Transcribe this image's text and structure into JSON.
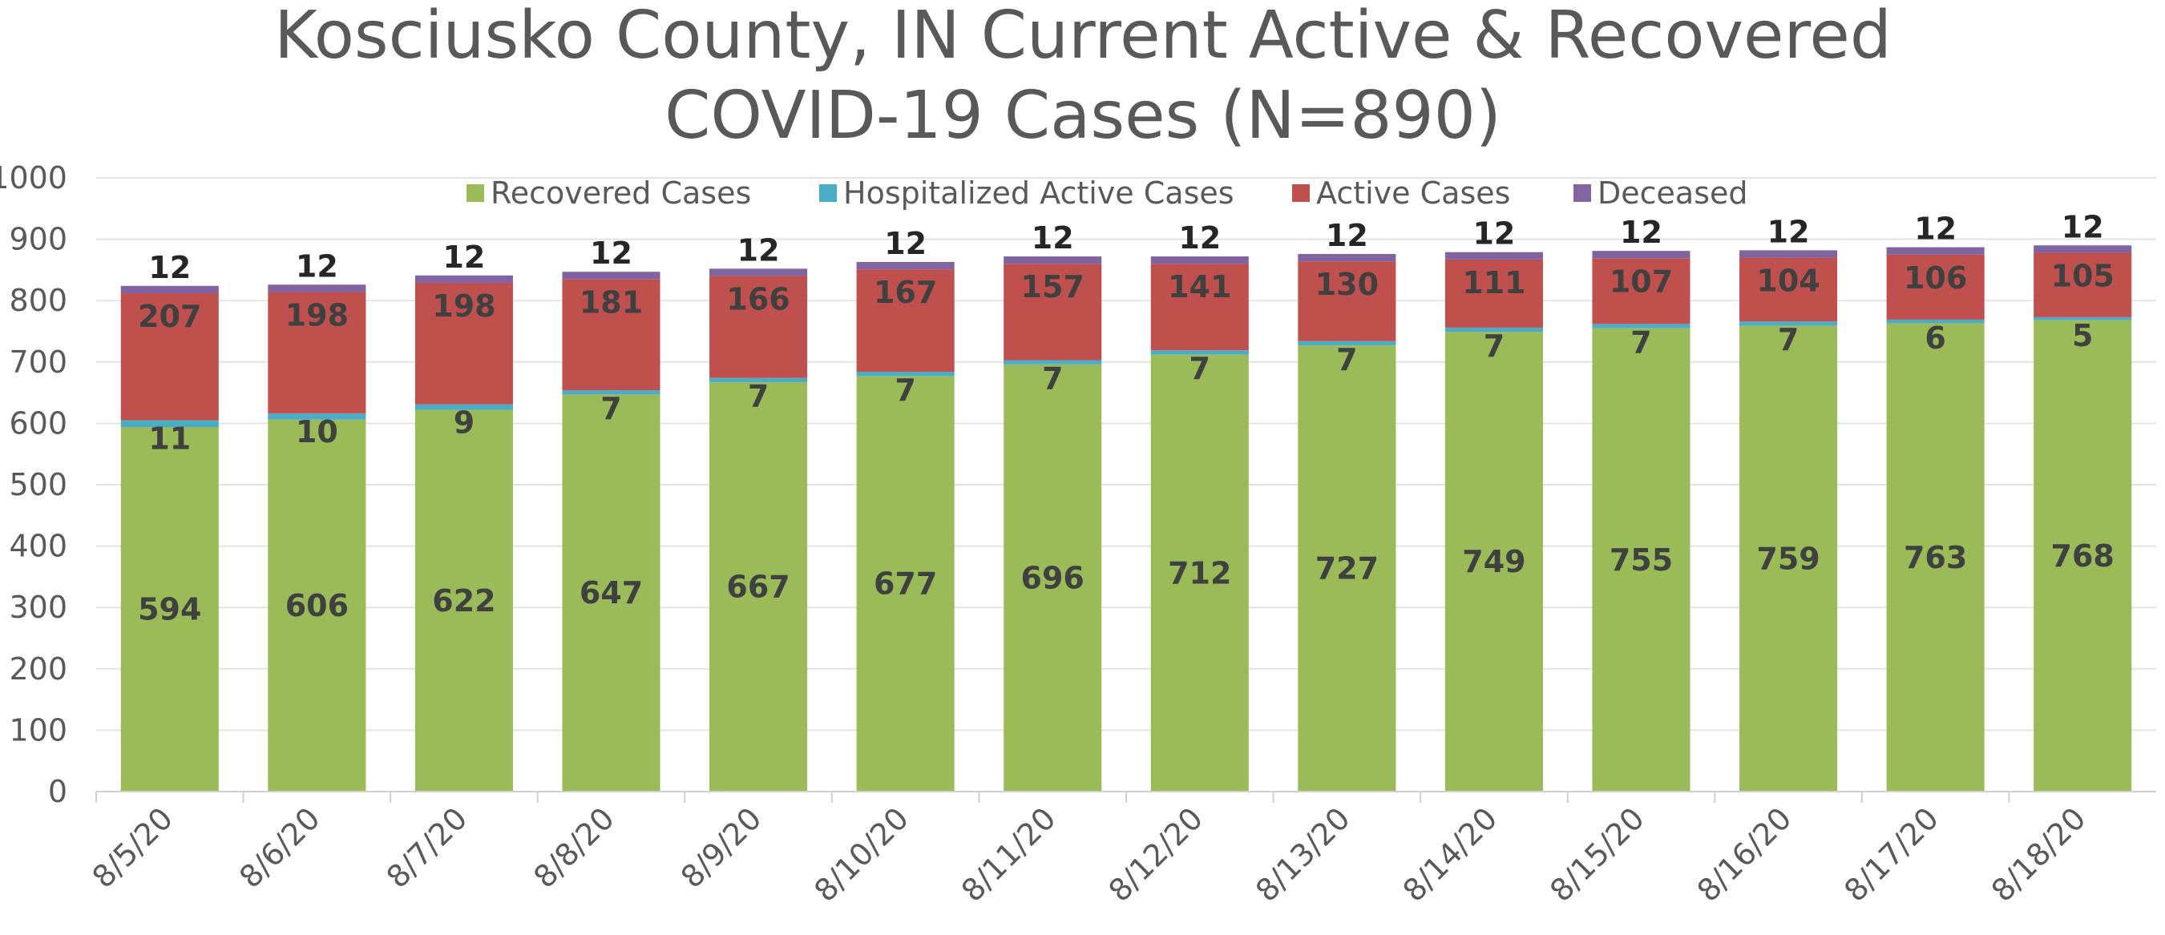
{
  "chart_data": {
    "type": "bar",
    "stacked": true,
    "title": [
      "Kosciusko County, IN Current Active & Recovered",
      "COVID-19 Cases (N=890)"
    ],
    "xlabel": "",
    "ylabel": "",
    "ylim": [
      0,
      1000
    ],
    "yticks": [
      "0",
      "100",
      "200",
      "300",
      "400",
      "500",
      "600",
      "700",
      "800",
      "900",
      "1000"
    ],
    "grid": true,
    "legend_position": "top",
    "categories": [
      "8/5/20",
      "8/6/20",
      "8/7/20",
      "8/8/20",
      "8/9/20",
      "8/10/20",
      "8/11/20",
      "8/12/20",
      "8/13/20",
      "8/14/20",
      "8/15/20",
      "8/16/20",
      "8/17/20",
      "8/18/20"
    ],
    "series": [
      {
        "name": "Recovered Cases",
        "color": "#9bbb59",
        "values": [
          594,
          606,
          622,
          647,
          667,
          677,
          696,
          712,
          727,
          749,
          755,
          759,
          763,
          768
        ]
      },
      {
        "name": "Hospitalized Active Cases",
        "color": "#4bacc6",
        "values": [
          11,
          10,
          9,
          7,
          7,
          7,
          7,
          7,
          7,
          7,
          7,
          7,
          6,
          5
        ]
      },
      {
        "name": "Active Cases",
        "color": "#c0504d",
        "values": [
          207,
          198,
          198,
          181,
          166,
          167,
          157,
          141,
          130,
          111,
          107,
          104,
          106,
          105
        ]
      },
      {
        "name": "Deceased",
        "color": "#8064a2",
        "values": [
          12,
          12,
          12,
          12,
          12,
          12,
          12,
          12,
          12,
          12,
          12,
          12,
          12,
          12
        ]
      }
    ]
  }
}
